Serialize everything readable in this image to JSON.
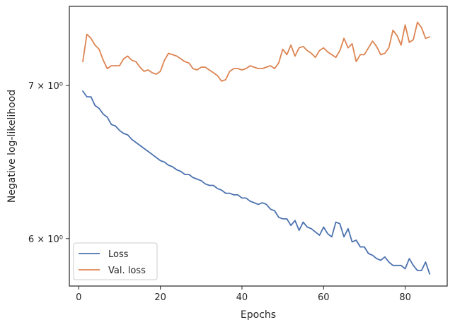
{
  "chart_data": {
    "type": "line",
    "xlabel": "Epochs",
    "ylabel": "Negative log-likelihood",
    "x_scale": "linear",
    "y_scale": "log",
    "xlim": [
      -2.3,
      90.3
    ],
    "ylim": [
      5.72,
      7.58
    ],
    "x_ticks": [
      0,
      20,
      40,
      60,
      80
    ],
    "y_ticks": [
      {
        "value": 6,
        "label": "6 × 10⁰"
      },
      {
        "value": 7,
        "label": "7 × 10⁰"
      }
    ],
    "grid": false,
    "legend": {
      "placement": "bottom-left"
    },
    "x": [
      1,
      2,
      3,
      4,
      5,
      6,
      7,
      8,
      9,
      10,
      11,
      12,
      13,
      14,
      15,
      16,
      17,
      18,
      19,
      20,
      21,
      22,
      23,
      24,
      25,
      26,
      27,
      28,
      29,
      30,
      31,
      32,
      33,
      34,
      35,
      36,
      37,
      38,
      39,
      40,
      41,
      42,
      43,
      44,
      45,
      46,
      47,
      48,
      49,
      50,
      51,
      52,
      53,
      54,
      55,
      56,
      57,
      58,
      59,
      60,
      61,
      62,
      63,
      64,
      65,
      66,
      67,
      68,
      69,
      70,
      71,
      72,
      73,
      74,
      75,
      76,
      77,
      78,
      79,
      80,
      81,
      82,
      83,
      84,
      85,
      86
    ],
    "series": [
      {
        "name": "Loss",
        "color": "#4c72b0",
        "values": [
          6.96,
          6.92,
          6.92,
          6.86,
          6.84,
          6.8,
          6.78,
          6.73,
          6.72,
          6.69,
          6.67,
          6.66,
          6.63,
          6.61,
          6.59,
          6.57,
          6.55,
          6.53,
          6.51,
          6.49,
          6.48,
          6.46,
          6.45,
          6.43,
          6.42,
          6.4,
          6.4,
          6.38,
          6.37,
          6.36,
          6.34,
          6.33,
          6.33,
          6.31,
          6.3,
          6.28,
          6.28,
          6.27,
          6.27,
          6.25,
          6.25,
          6.23,
          6.22,
          6.21,
          6.22,
          6.21,
          6.18,
          6.17,
          6.13,
          6.12,
          6.12,
          6.08,
          6.11,
          6.05,
          6.1,
          6.07,
          6.06,
          6.04,
          6.02,
          6.07,
          6.03,
          6.01,
          6.1,
          6.09,
          6.01,
          6.06,
          5.98,
          5.99,
          5.95,
          5.95,
          5.91,
          5.9,
          5.88,
          5.87,
          5.89,
          5.86,
          5.84,
          5.84,
          5.84,
          5.82,
          5.88,
          5.84,
          5.81,
          5.81,
          5.86,
          5.79
        ]
      },
      {
        "name": "Val. loss",
        "color": "#dd8452",
        "values": [
          7.17,
          7.37,
          7.34,
          7.29,
          7.26,
          7.18,
          7.12,
          7.14,
          7.14,
          7.14,
          7.19,
          7.21,
          7.18,
          7.17,
          7.13,
          7.1,
          7.11,
          7.09,
          7.08,
          7.1,
          7.18,
          7.23,
          7.22,
          7.21,
          7.19,
          7.17,
          7.16,
          7.12,
          7.11,
          7.13,
          7.13,
          7.11,
          7.09,
          7.07,
          7.03,
          7.04,
          7.1,
          7.12,
          7.12,
          7.11,
          7.12,
          7.14,
          7.13,
          7.12,
          7.12,
          7.13,
          7.14,
          7.12,
          7.16,
          7.26,
          7.22,
          7.29,
          7.21,
          7.27,
          7.28,
          7.25,
          7.23,
          7.2,
          7.25,
          7.27,
          7.24,
          7.22,
          7.2,
          7.25,
          7.34,
          7.27,
          7.3,
          7.17,
          7.22,
          7.22,
          7.27,
          7.32,
          7.28,
          7.22,
          7.23,
          7.27,
          7.4,
          7.36,
          7.29,
          7.44,
          7.31,
          7.33,
          7.46,
          7.42,
          7.34,
          7.35
        ]
      }
    ]
  }
}
